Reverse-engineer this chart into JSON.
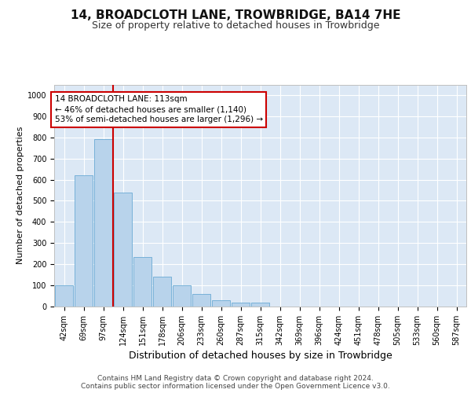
{
  "title": "14, BROADCLOTH LANE, TROWBRIDGE, BA14 7HE",
  "subtitle": "Size of property relative to detached houses in Trowbridge",
  "xlabel": "Distribution of detached houses by size in Trowbridge",
  "ylabel": "Number of detached properties",
  "bin_labels": [
    "42sqm",
    "69sqm",
    "97sqm",
    "124sqm",
    "151sqm",
    "178sqm",
    "206sqm",
    "233sqm",
    "260sqm",
    "287sqm",
    "315sqm",
    "342sqm",
    "369sqm",
    "396sqm",
    "424sqm",
    "451sqm",
    "478sqm",
    "505sqm",
    "533sqm",
    "560sqm",
    "587sqm"
  ],
  "bar_heights": [
    100,
    620,
    790,
    540,
    235,
    140,
    100,
    60,
    30,
    20,
    20,
    0,
    0,
    0,
    0,
    0,
    0,
    0,
    0,
    0,
    0
  ],
  "bar_color": "#b8d3eb",
  "bar_edge_color": "#6aaad4",
  "background_color": "#dce8f5",
  "grid_color": "#ffffff",
  "vline_x": 2.5,
  "vline_color": "#cc0000",
  "annotation_line1": "14 BROADCLOTH LANE: 113sqm",
  "annotation_line2": "← 46% of detached houses are smaller (1,140)",
  "annotation_line3": "53% of semi-detached houses are larger (1,296) →",
  "annotation_box_edgecolor": "#cc0000",
  "ylim": [
    0,
    1050
  ],
  "yticks": [
    0,
    100,
    200,
    300,
    400,
    500,
    600,
    700,
    800,
    900,
    1000
  ],
  "footer_line1": "Contains HM Land Registry data © Crown copyright and database right 2024.",
  "footer_line2": "Contains public sector information licensed under the Open Government Licence v3.0.",
  "title_fontsize": 11,
  "subtitle_fontsize": 9,
  "xlabel_fontsize": 9,
  "ylabel_fontsize": 8,
  "tick_fontsize": 7,
  "annotation_fontsize": 7.5,
  "footer_fontsize": 6.5
}
